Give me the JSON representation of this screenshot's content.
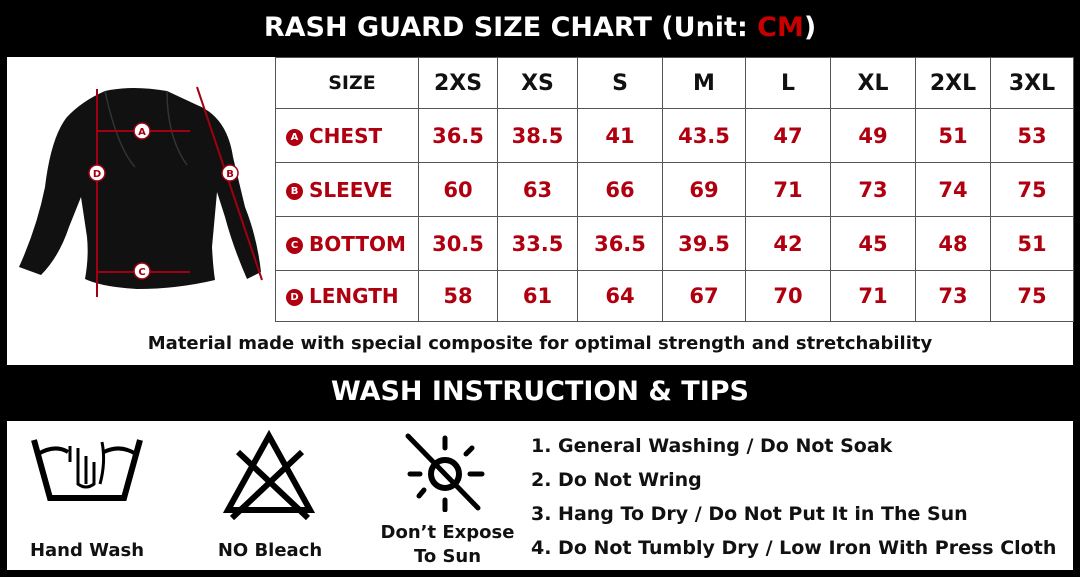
{
  "header": {
    "title_prefix": "RASH GUARD SIZE CHART (Unit: ",
    "title_unit": "CM",
    "title_suffix": ")"
  },
  "colors": {
    "accent": "#c80000",
    "background": "#000000"
  },
  "table": {
    "size_label": "SIZE",
    "sizes": [
      "2XS",
      "XS",
      "S",
      "M",
      "L",
      "XL",
      "2XL",
      "3XL"
    ],
    "rows": [
      {
        "badge": "A",
        "label": "CHEST",
        "values": [
          "36.5",
          "38.5",
          "41",
          "43.5",
          "47",
          "49",
          "51",
          "53"
        ]
      },
      {
        "badge": "B",
        "label": "SLEEVE",
        "values": [
          "60",
          "63",
          "66",
          "69",
          "71",
          "73",
          "74",
          "75"
        ]
      },
      {
        "badge": "C",
        "label": "BOTTOM",
        "values": [
          "30.5",
          "33.5",
          "36.5",
          "39.5",
          "42",
          "45",
          "48",
          "51"
        ]
      },
      {
        "badge": "D",
        "label": "LENGTH",
        "values": [
          "58",
          "61",
          "64",
          "67",
          "70",
          "71",
          "73",
          "75"
        ]
      }
    ]
  },
  "diagram": {
    "markers": [
      "A",
      "B",
      "C",
      "D"
    ]
  },
  "note": "Material made with special composite for optimal strength and stretchability",
  "wash": {
    "title": "WASH INSTRUCTION & TIPS",
    "icons": [
      {
        "icon": "hand-wash-icon",
        "label": "Hand Wash"
      },
      {
        "icon": "no-bleach-icon",
        "label": "NO Bleach"
      },
      {
        "icon": "no-sun-icon",
        "label_line1": "Don’t Expose",
        "label_line2": "To Sun"
      }
    ],
    "tips": [
      "1. General Washing / Do Not Soak",
      "2. Do Not Wring",
      "3. Hang To Dry / Do Not Put It in The Sun",
      "4. Do Not Tumbly Dry / Low Iron With Press Cloth"
    ]
  }
}
